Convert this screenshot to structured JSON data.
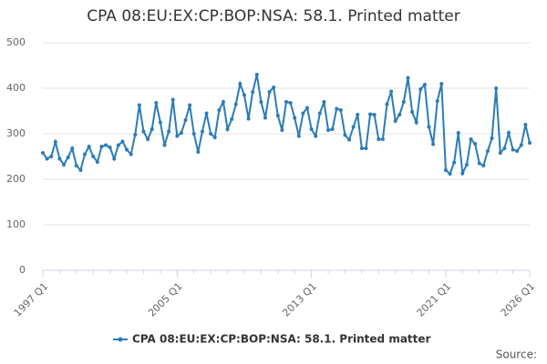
{
  "chart_data": {
    "type": "line",
    "title": "CPA 08:EU:EX:CP:BOP:NSA: 58.1. Printed matter",
    "categories": [
      "1997 Q1",
      null,
      null,
      null,
      null,
      null,
      null,
      null,
      null,
      null,
      null,
      null,
      null,
      null,
      null,
      null,
      null,
      null,
      null,
      null,
      null,
      null,
      null,
      null,
      null,
      null,
      null,
      null,
      null,
      null,
      null,
      null,
      "2005 Q1",
      null,
      null,
      null,
      null,
      null,
      null,
      null,
      null,
      null,
      null,
      null,
      null,
      null,
      null,
      null,
      null,
      null,
      null,
      null,
      null,
      null,
      null,
      null,
      null,
      null,
      null,
      null,
      null,
      null,
      null,
      null,
      "2013 Q1",
      null,
      null,
      null,
      null,
      null,
      null,
      null,
      null,
      null,
      null,
      null,
      null,
      null,
      null,
      null,
      null,
      null,
      null,
      null,
      null,
      null,
      null,
      null,
      null,
      null,
      null,
      null,
      null,
      null,
      null,
      null,
      "2021 Q1",
      null,
      null,
      null,
      null,
      null,
      null,
      null,
      null,
      null,
      null,
      null,
      null,
      null,
      null,
      null,
      null,
      null,
      null,
      null,
      "2026 Q1"
    ],
    "series": [
      {
        "name": "CPA 08:EU:EX:CP:BOP:NSA: 58.1. Printed matter",
        "color": "#2b7bb9",
        "values": [
          258,
          245,
          250,
          282,
          245,
          232,
          248,
          268,
          230,
          220,
          255,
          272,
          250,
          238,
          272,
          275,
          270,
          245,
          275,
          283,
          265,
          255,
          298,
          363,
          305,
          288,
          310,
          368,
          325,
          275,
          305,
          375,
          295,
          302,
          330,
          363,
          300,
          260,
          305,
          345,
          300,
          292,
          352,
          370,
          310,
          332,
          365,
          410,
          385,
          333,
          392,
          430,
          370,
          335,
          392,
          402,
          340,
          308,
          370,
          368,
          335,
          295,
          345,
          357,
          310,
          295,
          345,
          370,
          308,
          310,
          355,
          352,
          297,
          287,
          315,
          342,
          268,
          268,
          343,
          342,
          288,
          288,
          365,
          393,
          328,
          342,
          370,
          423,
          348,
          325,
          398,
          408,
          315,
          277,
          372,
          410,
          220,
          212,
          237,
          302,
          213,
          232,
          288,
          278,
          235,
          230,
          262,
          290,
          400,
          258,
          268,
          302,
          265,
          262,
          275,
          320,
          280
        ]
      }
    ],
    "ylim": [
      0,
      500
    ],
    "yticks": [
      0,
      100,
      200,
      300,
      400,
      500
    ],
    "grid": true,
    "source": "Source:"
  }
}
